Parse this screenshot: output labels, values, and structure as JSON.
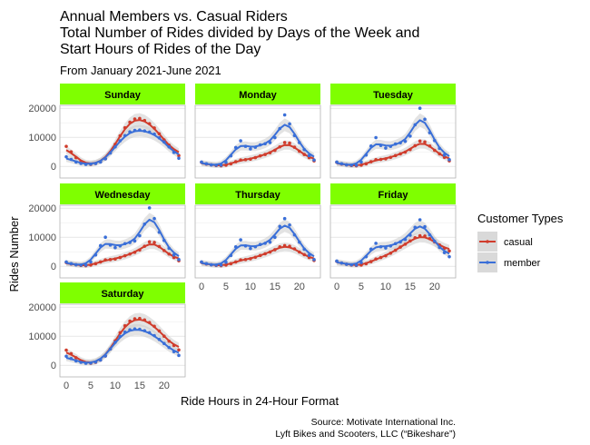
{
  "chart_data": {
    "type": "scatter",
    "title_lines": [
      "Annual Members vs. Casual Riders",
      "Total Number of Rides divided by Days of the Week and",
      "Start Hours of Rides of the Day"
    ],
    "subtitle": "From January 2021-June 2021",
    "xlabel": "Ride Hours in 24-Hour Format",
    "ylabel": "Rides Number",
    "caption_lines": [
      "Source: Motivate International Inc.",
      "Lyft Bikes and Scooters, LLC (“Bikeshare”)"
    ],
    "xlim": [
      0,
      23
    ],
    "ylim": [
      -4000,
      21000
    ],
    "x_ticks": [
      0,
      5,
      10,
      15,
      20
    ],
    "y_ticks": [
      0,
      10000,
      20000
    ],
    "legend": {
      "title": "Customer Types",
      "position": "right",
      "items": [
        {
          "key": "casual",
          "label": "casual",
          "color": "#d03c2c"
        },
        {
          "key": "member",
          "label": "member",
          "color": "#3a6fd8"
        }
      ]
    },
    "colors": {
      "strip": "#7fff00",
      "panel_border": "#b3b3b3",
      "grid": "#d9d9d9",
      "smooth_band": "#cccccc"
    },
    "hours": [
      0,
      1,
      2,
      3,
      4,
      5,
      6,
      7,
      8,
      9,
      10,
      11,
      12,
      13,
      14,
      15,
      16,
      17,
      18,
      19,
      20,
      21,
      22,
      23
    ],
    "panels": [
      {
        "name": "Sunday",
        "casual": [
          6900,
          5000,
          3000,
          1600,
          900,
          700,
          1000,
          1600,
          2600,
          4800,
          7600,
          10500,
          13300,
          15200,
          16300,
          16500,
          15800,
          14700,
          13200,
          11200,
          9100,
          7300,
          5400,
          3700
        ],
        "member": [
          3300,
          2400,
          1500,
          1000,
          700,
          800,
          1000,
          1500,
          2600,
          4600,
          6700,
          8800,
          10600,
          11900,
          12400,
          12500,
          12200,
          11800,
          11100,
          9800,
          8400,
          6700,
          4800,
          2800
        ]
      },
      {
        "name": "Monday",
        "casual": [
          1400,
          800,
          500,
          300,
          200,
          400,
          900,
          1600,
          2200,
          2300,
          2500,
          3000,
          3600,
          4100,
          4700,
          5500,
          6700,
          8200,
          8000,
          6600,
          5200,
          4100,
          3000,
          1900
        ],
        "member": [
          1500,
          900,
          500,
          400,
          400,
          1400,
          3600,
          6500,
          8800,
          6900,
          6000,
          6600,
          7400,
          7800,
          8200,
          9900,
          13000,
          17700,
          14600,
          10600,
          8200,
          5800,
          3700,
          2200
        ]
      },
      {
        "name": "Tuesday",
        "casual": [
          1400,
          800,
          500,
          300,
          200,
          400,
          900,
          1600,
          2300,
          2400,
          2600,
          3100,
          3700,
          4300,
          4900,
          5800,
          7100,
          8700,
          8400,
          7000,
          5500,
          4300,
          3100,
          1900
        ],
        "member": [
          1500,
          900,
          500,
          400,
          400,
          1500,
          3900,
          7000,
          9900,
          7200,
          6300,
          6900,
          7700,
          8100,
          8600,
          10400,
          14300,
          20000,
          16200,
          11600,
          8900,
          6200,
          3900,
          2300
        ]
      },
      {
        "name": "Wednesday",
        "casual": [
          1300,
          800,
          500,
          300,
          200,
          400,
          900,
          1500,
          2200,
          2300,
          2500,
          3000,
          3600,
          4200,
          4800,
          5600,
          6900,
          8400,
          8200,
          6800,
          5400,
          4200,
          3000,
          1900
        ],
        "member": [
          1500,
          900,
          500,
          400,
          400,
          1500,
          3900,
          7100,
          10000,
          7300,
          6400,
          7000,
          7800,
          8200,
          8700,
          10500,
          14500,
          20100,
          16400,
          11700,
          8900,
          6200,
          3900,
          2300
        ]
      },
      {
        "name": "Thursday",
        "casual": [
          1400,
          800,
          500,
          300,
          200,
          400,
          900,
          1500,
          2200,
          2300,
          2600,
          3100,
          3700,
          4300,
          4900,
          5700,
          6700,
          7100,
          6900,
          6000,
          4900,
          4000,
          3000,
          2000
        ],
        "member": [
          1500,
          900,
          500,
          400,
          400,
          1400,
          3700,
          6700,
          9100,
          7000,
          6100,
          6700,
          7500,
          7900,
          8300,
          10000,
          13700,
          16400,
          14200,
          10800,
          8300,
          5900,
          3800,
          2300
        ]
      },
      {
        "name": "Friday",
        "casual": [
          1700,
          1100,
          700,
          400,
          300,
          400,
          900,
          1600,
          2500,
          3000,
          3600,
          4500,
          5500,
          6600,
          7600,
          8700,
          9800,
          10500,
          10400,
          9500,
          8400,
          7300,
          6200,
          5300
        ],
        "member": [
          1800,
          1100,
          700,
          500,
          400,
          1300,
          3300,
          5900,
          7900,
          6700,
          6300,
          7000,
          7800,
          8400,
          9200,
          10700,
          13400,
          16000,
          13600,
          10800,
          8600,
          6500,
          4700,
          3300
        ]
      },
      {
        "name": "Saturday",
        "casual": [
          5200,
          4000,
          2600,
          1400,
          800,
          700,
          1000,
          1800,
          3200,
          5600,
          8400,
          11200,
          13600,
          15200,
          16000,
          16100,
          15600,
          14700,
          13400,
          11800,
          10000,
          8300,
          6800,
          5300
        ],
        "member": [
          3100,
          2300,
          1500,
          1000,
          700,
          800,
          1100,
          1800,
          3200,
          5600,
          7900,
          9900,
          11400,
          12200,
          12500,
          12400,
          11900,
          11200,
          10200,
          8900,
          7500,
          6100,
          4700,
          3400
        ]
      }
    ]
  }
}
